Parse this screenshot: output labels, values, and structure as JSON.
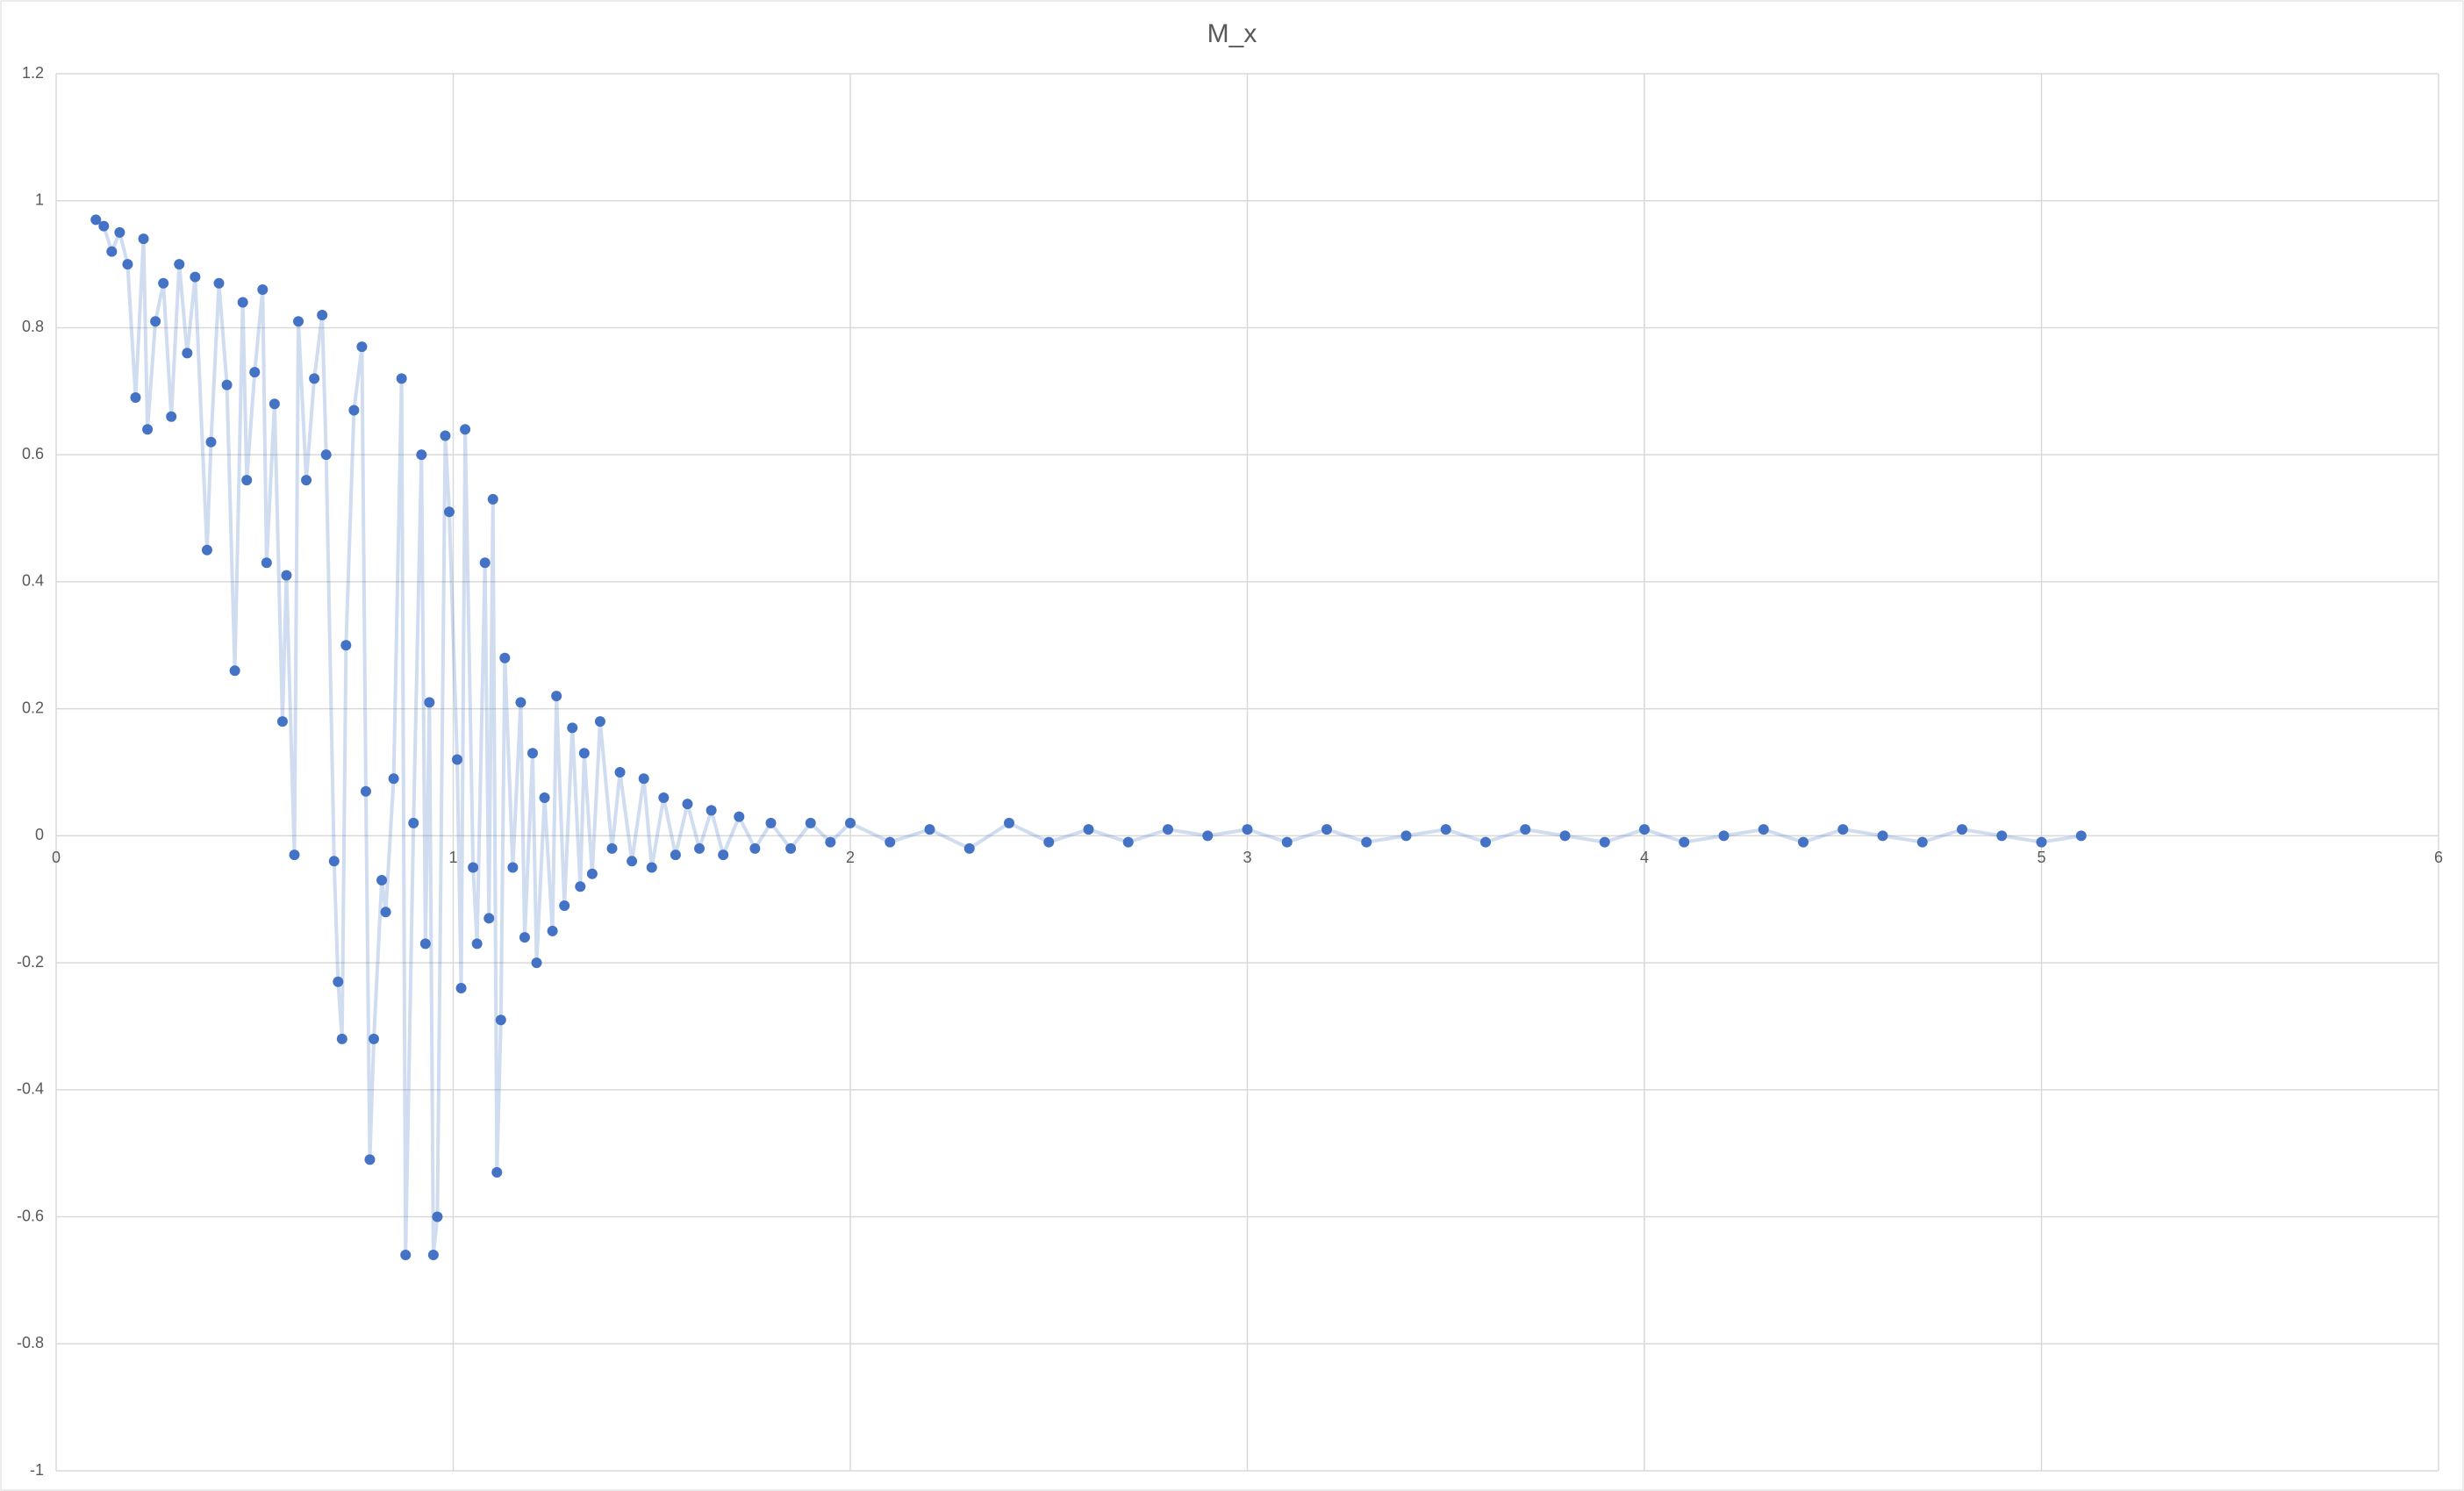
{
  "chart_data": {
    "type": "scatter",
    "title": "M_x",
    "color": "#4472c4",
    "grid": true,
    "xlim": [
      0,
      6
    ],
    "xticks": [
      0,
      1,
      2,
      3,
      4,
      5,
      6
    ],
    "ylim": [
      -1,
      1.2
    ],
    "yticks": [
      -1,
      -0.8,
      -0.6,
      -0.4,
      -0.2,
      0,
      0.2,
      0.4,
      0.6,
      0.8,
      1,
      1.2
    ],
    "x": [
      0.1,
      0.12,
      0.14,
      0.16,
      0.18,
      0.2,
      0.22,
      0.23,
      0.25,
      0.27,
      0.29,
      0.31,
      0.33,
      0.35,
      0.38,
      0.39,
      0.41,
      0.43,
      0.45,
      0.47,
      0.48,
      0.5,
      0.52,
      0.53,
      0.55,
      0.57,
      0.58,
      0.6,
      0.61,
      0.63,
      0.65,
      0.67,
      0.68,
      0.7,
      0.71,
      0.72,
      0.73,
      0.75,
      0.77,
      0.78,
      0.79,
      0.8,
      0.82,
      0.83,
      0.85,
      0.87,
      0.88,
      0.9,
      0.92,
      0.93,
      0.94,
      0.95,
      0.96,
      0.98,
      0.99,
      1.01,
      1.02,
      1.03,
      1.05,
      1.06,
      1.08,
      1.09,
      1.1,
      1.11,
      1.12,
      1.13,
      1.15,
      1.17,
      1.18,
      1.2,
      1.21,
      1.23,
      1.25,
      1.26,
      1.28,
      1.3,
      1.32,
      1.33,
      1.35,
      1.37,
      1.4,
      1.42,
      1.45,
      1.48,
      1.5,
      1.53,
      1.56,
      1.59,
      1.62,
      1.65,
      1.68,
      1.72,
      1.76,
      1.8,
      1.85,
      1.9,
      1.95,
      2.0,
      2.1,
      2.2,
      2.3,
      2.4,
      2.5,
      2.6,
      2.7,
      2.8,
      2.9,
      3.0,
      3.1,
      3.2,
      3.3,
      3.4,
      3.5,
      3.6,
      3.7,
      3.8,
      3.9,
      4.0,
      4.1,
      4.2,
      4.3,
      4.4,
      4.5,
      4.6,
      4.7,
      4.8,
      4.9,
      5.0,
      5.1
    ],
    "values": [
      0.97,
      0.96,
      0.92,
      0.95,
      0.9,
      0.69,
      0.94,
      0.64,
      0.81,
      0.87,
      0.66,
      0.9,
      0.76,
      0.88,
      0.45,
      0.62,
      0.87,
      0.71,
      0.26,
      0.84,
      0.56,
      0.73,
      0.86,
      0.43,
      0.68,
      0.18,
      0.41,
      -0.03,
      0.81,
      0.56,
      0.72,
      0.82,
      0.6,
      -0.04,
      -0.23,
      -0.32,
      0.3,
      0.67,
      0.77,
      0.07,
      -0.51,
      -0.32,
      -0.07,
      -0.12,
      0.09,
      0.72,
      -0.66,
      0.02,
      0.6,
      -0.17,
      0.21,
      -0.66,
      -0.6,
      0.63,
      0.51,
      0.12,
      -0.24,
      0.64,
      -0.05,
      -0.17,
      0.43,
      -0.13,
      0.53,
      -0.53,
      -0.29,
      0.28,
      -0.05,
      0.21,
      -0.16,
      0.13,
      -0.2,
      0.06,
      -0.15,
      0.22,
      -0.11,
      0.17,
      -0.08,
      0.13,
      -0.06,
      0.18,
      -0.02,
      0.1,
      -0.04,
      0.09,
      -0.05,
      0.06,
      -0.03,
      0.05,
      -0.02,
      0.04,
      -0.03,
      0.03,
      -0.02,
      0.02,
      -0.02,
      0.02,
      -0.01,
      0.02,
      -0.01,
      0.01,
      -0.02,
      0.02,
      -0.01,
      0.01,
      -0.01,
      0.01,
      0.0,
      0.01,
      -0.01,
      0.01,
      -0.01,
      0.0,
      0.01,
      -0.01,
      0.01,
      0.0,
      -0.01,
      0.01,
      -0.01,
      0.0,
      0.01,
      -0.01,
      0.01,
      0.0,
      -0.01,
      0.01,
      0.0,
      -0.01,
      0.0
    ]
  }
}
